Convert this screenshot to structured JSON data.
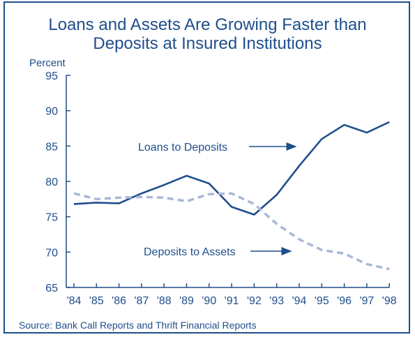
{
  "title_line1": "Loans and Assets Are Growing Faster than",
  "title_line2": "Deposits at Insured Institutions",
  "source": "Source: Bank Call Reports and Thrift Financial Reports",
  "colors": {
    "text": "#1f4e8c",
    "loans": "#1f4e8c",
    "deposits": "#a9b8d8",
    "frame": "#1f4e8c"
  },
  "chart_data": {
    "type": "line",
    "title": "Loans and Assets Are Growing Faster than Deposits at Insured Institutions",
    "ylabel": "Percent",
    "xlabel": "",
    "categories": [
      "'84",
      "'85",
      "'86",
      "'87",
      "'88",
      "'89",
      "'90",
      "'91",
      "'92",
      "'93",
      "'94",
      "'95",
      "'96",
      "'97",
      "'98"
    ],
    "ylim": [
      65,
      95
    ],
    "yticks": [
      65,
      70,
      75,
      80,
      85,
      90,
      95
    ],
    "series": [
      {
        "name": "Loans to Deposits",
        "style": "solid",
        "values": [
          76.8,
          77.0,
          76.9,
          78.3,
          79.5,
          80.8,
          79.7,
          76.4,
          75.3,
          78.1,
          82.2,
          86.0,
          88.0,
          86.9,
          88.4
        ]
      },
      {
        "name": "Deposits to Assets",
        "style": "dashed",
        "values": [
          78.3,
          77.5,
          77.7,
          77.8,
          77.7,
          77.2,
          78.2,
          78.3,
          76.8,
          74.0,
          71.8,
          70.3,
          69.8,
          68.3,
          67.6
        ]
      }
    ],
    "annotations": [
      {
        "text": "Loans to Deposits",
        "series": 0
      },
      {
        "text": "Deposits to Assets",
        "series": 1
      }
    ],
    "grid": false,
    "legend": "none"
  }
}
